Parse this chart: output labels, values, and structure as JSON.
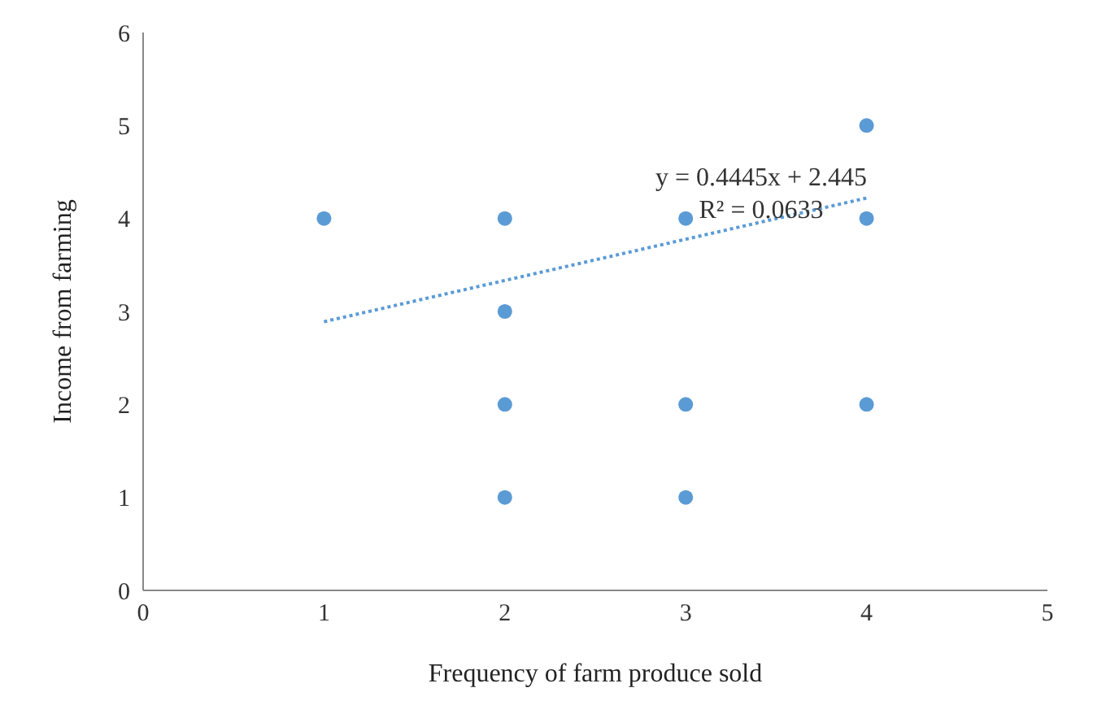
{
  "chart_data": {
    "type": "scatter",
    "xlabel": "Frequency of farm produce sold",
    "ylabel": "Income from farming",
    "xlim": [
      0,
      5
    ],
    "xticks": [
      0,
      1,
      2,
      3,
      4,
      5
    ],
    "ylim": [
      0,
      6
    ],
    "yticks": [
      0,
      1,
      2,
      3,
      4,
      5,
      6
    ],
    "grid": false,
    "legend": false,
    "marker": "circle",
    "series": [
      {
        "color": "#5b9bd5",
        "x": [
          1,
          2,
          2,
          2,
          2,
          3,
          3,
          3,
          4,
          4,
          4
        ],
        "values": [
          4,
          4,
          3,
          2,
          1,
          4,
          2,
          1,
          5,
          4,
          2
        ]
      },
      {
        "type": "line",
        "color": "#5b9bd5",
        "line_style": "dotted",
        "marker": "none",
        "x": [
          1,
          4
        ],
        "values": [
          2.89,
          4.22
        ]
      }
    ],
    "annotations": [
      "y = 0.4445x + 2.445",
      "R² = 0.0633"
    ]
  }
}
